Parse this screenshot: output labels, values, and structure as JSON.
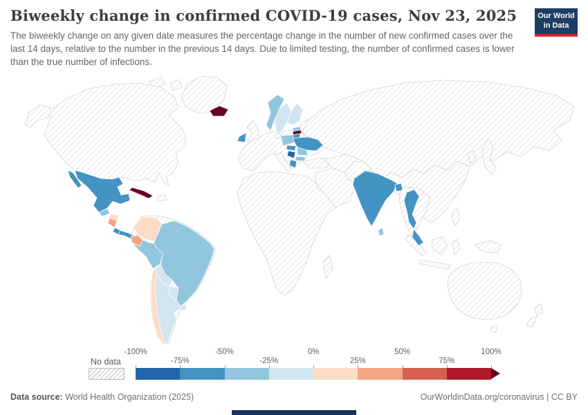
{
  "header": {
    "title": "Biweekly change in confirmed COVID-19 cases, Nov 23, 2025",
    "subtitle": "The biweekly change on any given date measures the percentage change in the number of new confirmed cases over the last 14 days, relative to the number in the previous 14 days. Due to limited testing, the number of confirmed cases is lower than the true number of infections.",
    "logo": {
      "line1": "Our World",
      "line2": "in Data",
      "bg": "#1d3d63",
      "accent": "#dc2227"
    }
  },
  "legend": {
    "no_data_label": "No data",
    "ticks": [
      {
        "label": "-100%",
        "pos": 0,
        "row": 0
      },
      {
        "label": "-75%",
        "pos": 12.5,
        "row": 1
      },
      {
        "label": "-50%",
        "pos": 25,
        "row": 0
      },
      {
        "label": "-25%",
        "pos": 37.5,
        "row": 1
      },
      {
        "label": "0%",
        "pos": 50,
        "row": 0
      },
      {
        "label": "25%",
        "pos": 62.5,
        "row": 1
      },
      {
        "label": "50%",
        "pos": 75,
        "row": 0
      },
      {
        "label": "75%",
        "pos": 87.5,
        "row": 1
      },
      {
        "label": "100%",
        "pos": 100,
        "row": 0
      }
    ]
  },
  "footer": {
    "source_label": "Data source:",
    "source_value": " World Health Organization (2025)",
    "credit": "OurWorldinData.org/coronavirus | CC BY"
  },
  "chart_data": {
    "type": "choropleth",
    "title": "Biweekly change in confirmed COVID-19 cases",
    "date": "Nov 23, 2025",
    "unit": "%",
    "range": [
      -100,
      100
    ],
    "bins": [
      -100,
      -75,
      -50,
      -25,
      0,
      25,
      50,
      75,
      100
    ],
    "colors": [
      "#2166ac",
      "#4393c3",
      "#92c5de",
      "#d1e5f0",
      "#fddbc7",
      "#f4a582",
      "#d6604d",
      "#b2182b"
    ],
    "above_max_color": "#67001f",
    "no_data_pattern": "hatched",
    "countries": [
      {
        "id": "mexico",
        "name": "Mexico",
        "value": -68
      },
      {
        "id": "guatemala",
        "name": "Guatemala",
        "value": -30
      },
      {
        "id": "honduras",
        "name": "Honduras",
        "value": 10
      },
      {
        "id": "nicaragua",
        "name": "Nicaragua",
        "value": 30
      },
      {
        "id": "costa-rica",
        "name": "Costa Rica",
        "value": -55
      },
      {
        "id": "panama",
        "name": "Panama",
        "value": -55
      },
      {
        "id": "cuba",
        "name": "Cuba",
        "value": 120
      },
      {
        "id": "colombia",
        "name": "Colombia",
        "value": 12
      },
      {
        "id": "ecuador",
        "name": "Ecuador",
        "value": 35
      },
      {
        "id": "peru",
        "name": "Peru",
        "value": -40
      },
      {
        "id": "brazil",
        "name": "Brazil",
        "value": -35
      },
      {
        "id": "bolivia",
        "name": "Bolivia",
        "value": -15
      },
      {
        "id": "paraguay",
        "name": "Paraguay",
        "value": -10
      },
      {
        "id": "uruguay",
        "name": "Uruguay",
        "value": -18
      },
      {
        "id": "chile",
        "name": "Chile",
        "value": 15
      },
      {
        "id": "argentina",
        "name": "Argentina",
        "value": -12
      },
      {
        "id": "iceland",
        "name": "Iceland",
        "value": 115
      },
      {
        "id": "ireland",
        "name": "Ireland",
        "value": -60
      },
      {
        "id": "norway",
        "name": "Norway",
        "value": -30
      },
      {
        "id": "sweden",
        "name": "Sweden",
        "value": -20
      },
      {
        "id": "finland",
        "name": "Finland",
        "value": -22
      },
      {
        "id": "estonia",
        "name": "Estonia",
        "value": -25
      },
      {
        "id": "latvia",
        "name": "Latvia",
        "value": 110
      },
      {
        "id": "lithuania",
        "name": "Lithuania",
        "value": -55
      },
      {
        "id": "poland",
        "name": "Poland",
        "value": -30
      },
      {
        "id": "ukraine",
        "name": "Ukraine",
        "value": -60
      },
      {
        "id": "romania",
        "name": "Romania",
        "value": -45
      },
      {
        "id": "hungary",
        "name": "Hungary",
        "value": -55
      },
      {
        "id": "serbia",
        "name": "Serbia",
        "value": -90
      },
      {
        "id": "bulgaria",
        "name": "Bulgaria",
        "value": -40
      },
      {
        "id": "greece",
        "name": "Greece",
        "value": -60
      },
      {
        "id": "india",
        "name": "India",
        "value": -74
      },
      {
        "id": "sri-lanka",
        "name": "Sri Lanka",
        "value": -40
      },
      {
        "id": "bangladesh",
        "name": "Bangladesh",
        "value": -60
      },
      {
        "id": "thailand",
        "name": "Thailand",
        "value": -66
      },
      {
        "id": "malaysia",
        "name": "Malaysia",
        "value": -55
      }
    ]
  }
}
